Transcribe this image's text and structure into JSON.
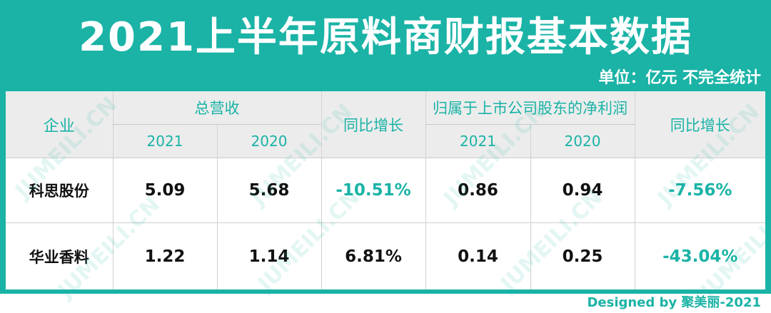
{
  "title": "2021上半年原料商财报基本数据",
  "unit": "单位：亿元 不完全统计",
  "footer": "Designed by 聚美丽-2021",
  "watermark": "JUMEILI.CN",
  "colors": {
    "accent": "#1ab3a6",
    "header_bg": "#ececec",
    "text": "#111111"
  },
  "table": {
    "company_header": "企业",
    "revenue_header": "总营收",
    "yoy_header_1": "同比增长",
    "profit_header": "归属于上市公司股东的净利润",
    "yoy_header_2": "同比增长",
    "year_2021": "2021",
    "year_2020": "2020",
    "year_2021_b": "2021",
    "year_2020_b": "2020",
    "rows": [
      {
        "company": "科思股份",
        "rev_2021": "5.09",
        "rev_2020": "5.68",
        "rev_yoy": "-10.51%",
        "profit_2021": "0.86",
        "profit_2020": "0.94",
        "profit_yoy": "-7.56%"
      },
      {
        "company": "华业香料",
        "rev_2021": "1.22",
        "rev_2020": "1.14",
        "rev_yoy": "6.81%",
        "profit_2021": "0.14",
        "profit_2020": "0.25",
        "profit_yoy": "-43.04%"
      }
    ]
  }
}
